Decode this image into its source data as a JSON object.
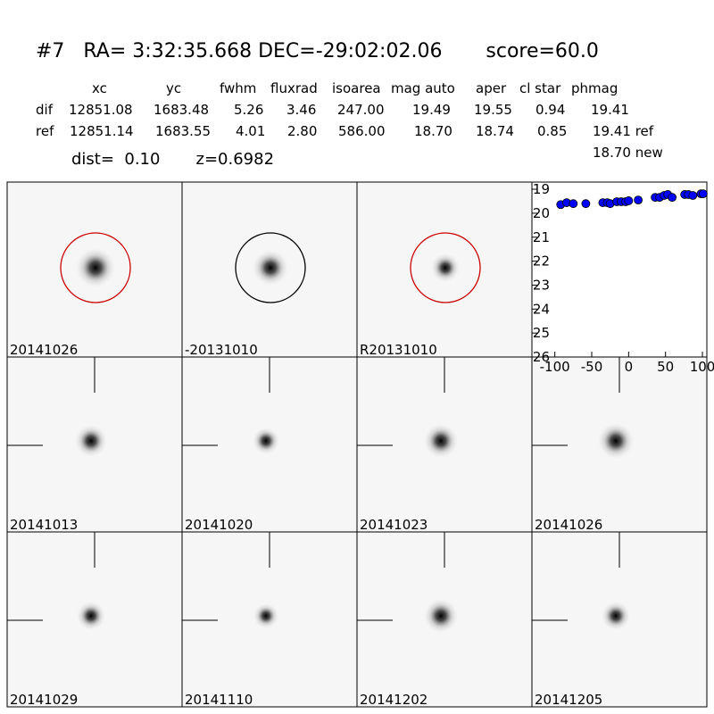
{
  "header": {
    "title": "#7   RA= 3:32:35.668 DEC=-29:02:02.06       score=60.0",
    "columns": [
      "xc",
      "yc",
      "fwhm",
      "fluxrad",
      "isoarea",
      "mag auto",
      "aper",
      "cl star",
      "phmag"
    ],
    "rows": [
      [
        "dif",
        "12851.08",
        "1683.48",
        "5.26",
        "3.46",
        "247.00",
        "19.49",
        "19.55",
        "0.94",
        "19.41"
      ],
      [
        "ref",
        "12851.14",
        "1683.55",
        "4.01",
        "2.80",
        "586.00",
        "18.70",
        "18.74",
        "0.85",
        "19.41 ref"
      ]
    ],
    "extra": "18.70 new",
    "dist": "dist=  0.10       z=0.6982"
  },
  "panels": [
    {
      "label": "20141026",
      "color": "#000000"
    },
    {
      "label": "-20131010",
      "color": "#000000"
    },
    {
      "label": "R20131010",
      "color": "#000000"
    },
    {
      "label": "20141013",
      "color": "#000000"
    },
    {
      "label": "20141020",
      "color": "#000000"
    },
    {
      "label": "20141023",
      "color": "#000000"
    },
    {
      "label": "20141026",
      "color": "#ff0000"
    },
    {
      "label": "20141029",
      "color": "#000000"
    },
    {
      "label": "20141110",
      "color": "#000000"
    },
    {
      "label": "20141202",
      "color": "#000000"
    },
    {
      "label": "20141205",
      "color": "#000000"
    }
  ],
  "chart_data": {
    "type": "scatter",
    "color": "#0000ff",
    "x": [
      -92,
      -84,
      -75,
      -58,
      -35,
      -29,
      -25,
      -16,
      -10,
      -4,
      0,
      13,
      36,
      42,
      48,
      53,
      59,
      76,
      81,
      87,
      98,
      101
    ],
    "values": [
      19.64,
      19.56,
      19.6,
      19.6,
      19.56,
      19.56,
      19.6,
      19.52,
      19.52,
      19.52,
      19.48,
      19.45,
      19.34,
      19.34,
      19.26,
      19.22,
      19.34,
      19.22,
      19.22,
      19.26,
      19.19,
      19.19
    ],
    "xlim": [
      -102,
      106
    ],
    "xticks": [
      -100,
      -50,
      0,
      50,
      100
    ],
    "ylim": [
      18.7,
      26
    ],
    "yticks": [
      19,
      20,
      21,
      22,
      23,
      24,
      25,
      26
    ],
    "y_inverted": true
  }
}
